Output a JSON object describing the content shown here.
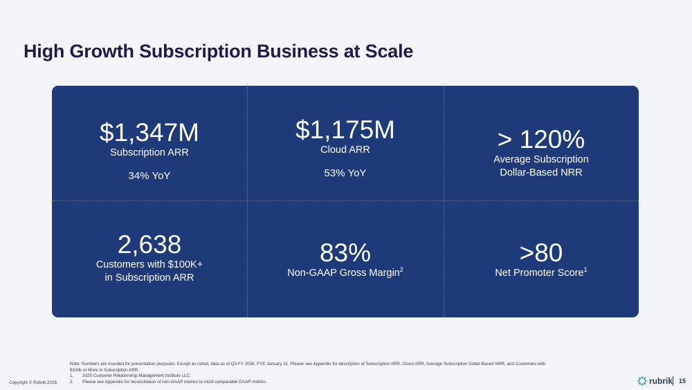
{
  "slide": {
    "title": "High Growth Subscription Business at Scale",
    "colors": {
      "panel": "#1f3a78",
      "title": "#1e1a4a",
      "background": "#f4f5f8",
      "text_on_panel": "#ffffff"
    }
  },
  "metrics": [
    {
      "value": "$1,347M",
      "label": "Subscription ARR",
      "yoy": "34% YoY"
    },
    {
      "value": "$1,175M",
      "label": "Cloud ARR",
      "yoy": "53% YoY"
    },
    {
      "value": "> 120%",
      "label_line1": "Average Subscription",
      "label_line2": "Dollar-Based NRR"
    },
    {
      "value": "2,638",
      "label_line1": "Customers with $100K+",
      "label_line2": "in Subscription ARR"
    },
    {
      "value": "83%",
      "label": "Non-GAAP Gross Margin",
      "footnote": "2"
    },
    {
      "value": ">80",
      "label": "Net Promoter Score",
      "footnote": "1"
    }
  ],
  "notes": {
    "note_line1": "Note: Numbers are rounded for presentation purposes. Except as noted, data as of Q3 FY 2026. FYE January 31. Please see Appendix for description of Subscription ARR, Cloud ARR, Average Subscription Dollar-Based NRR, and Customers with",
    "note_line2": "$100k or More in Subscription ARR.",
    "footnotes": [
      {
        "num": "1.",
        "text": "2025 Customer Relationship Management Institute LLC."
      },
      {
        "num": "2.",
        "text": "Please see Appendix for reconciliation of non-GAAP metrics to most comparable GAAP metrics."
      }
    ]
  },
  "footer": {
    "copyright": "Copyright © Rubrik 2025",
    "brand": "rubrik",
    "brand_icon": "rubrik-logo-icon",
    "page_number": "15"
  }
}
